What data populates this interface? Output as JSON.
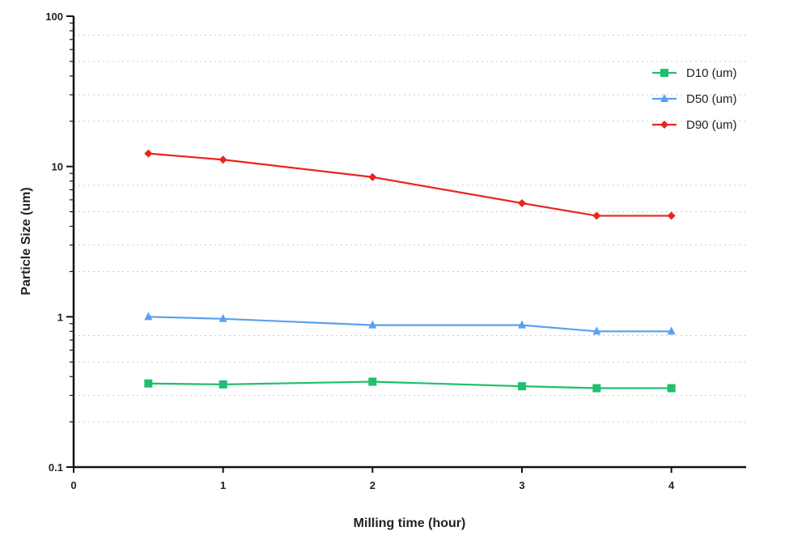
{
  "chart_data": {
    "type": "line",
    "title": "",
    "xlabel": "Milling time (hour)",
    "ylabel": "Particle Size (um)",
    "x": [
      0.5,
      1,
      2,
      3,
      3.5,
      4
    ],
    "xlim": [
      0,
      4.5
    ],
    "ylim": [
      0.1,
      100
    ],
    "yscale": "log",
    "x_ticks": [
      0,
      1,
      2,
      3,
      4
    ],
    "y_ticks": [
      0.1,
      1,
      10,
      100
    ],
    "x_tick_labels": [
      "0",
      "1",
      "2",
      "3",
      "4"
    ],
    "y_tick_labels": [
      "0.1",
      "1",
      "10",
      "100"
    ],
    "grid": "horizontal dotted minor",
    "legend_position": "top-right",
    "series": [
      {
        "name": "D10 (um)",
        "color": "#1fbf6e",
        "marker": "square",
        "values": [
          0.36,
          0.355,
          0.37,
          0.345,
          0.335,
          0.335
        ]
      },
      {
        "name": "D50 (um)",
        "color": "#5aa0f0",
        "marker": "triangle",
        "values": [
          1.0,
          0.97,
          0.88,
          0.88,
          0.8,
          0.8
        ]
      },
      {
        "name": "D90 (um)",
        "color": "#e8251f",
        "marker": "diamond",
        "values": [
          12.2,
          11.1,
          8.5,
          5.7,
          4.7,
          4.7
        ]
      }
    ]
  }
}
